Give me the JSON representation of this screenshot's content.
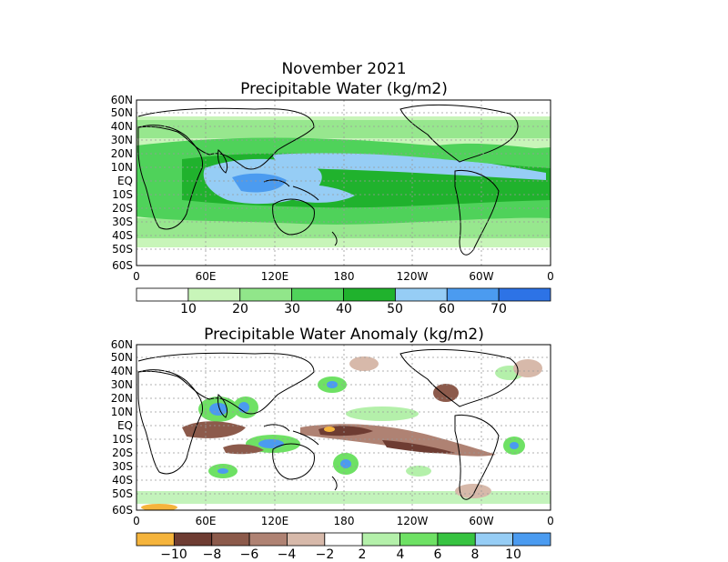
{
  "header": {
    "title": "November 2021"
  },
  "panels": [
    {
      "id": "pw",
      "title": "Precipitable Water (kg/m2)",
      "lat_labels": [
        "60N",
        "50N",
        "40N",
        "30N",
        "20N",
        "10N",
        "EQ",
        "10S",
        "20S",
        "30S",
        "40S",
        "50S",
        "60S"
      ],
      "lon_labels": [
        "0",
        "60E",
        "120E",
        "180",
        "120W",
        "60W",
        "0"
      ],
      "colorbar": {
        "labels": [
          "10",
          "20",
          "30",
          "40",
          "50",
          "60",
          "70"
        ],
        "colors": [
          "#ffffff",
          "#c8f5b9",
          "#91e68a",
          "#4fd25a",
          "#20b22d",
          "#96cdf5",
          "#4b9bf0",
          "#2d73e6"
        ]
      }
    },
    {
      "id": "anom",
      "title": "Precipitable Water Anomaly (kg/m2)",
      "lat_labels": [
        "60N",
        "50N",
        "40N",
        "30N",
        "20N",
        "10N",
        "EQ",
        "10S",
        "20S",
        "30S",
        "40S",
        "50S",
        "60S"
      ],
      "lon_labels": [
        "0",
        "60E",
        "120E",
        "180",
        "120W",
        "60W",
        "0"
      ],
      "colorbar": {
        "labels": [
          "−10",
          "−8",
          "−6",
          "−4",
          "−2",
          "2",
          "4",
          "6",
          "8",
          "10"
        ],
        "colors": [
          "#f5b43c",
          "#6e3c32",
          "#8c5a4b",
          "#af8273",
          "#d7b9aa",
          "#ffffff",
          "#b4f0aa",
          "#6ee164",
          "#37c341",
          "#96cdf5",
          "#4b9bf0"
        ]
      }
    }
  ]
}
